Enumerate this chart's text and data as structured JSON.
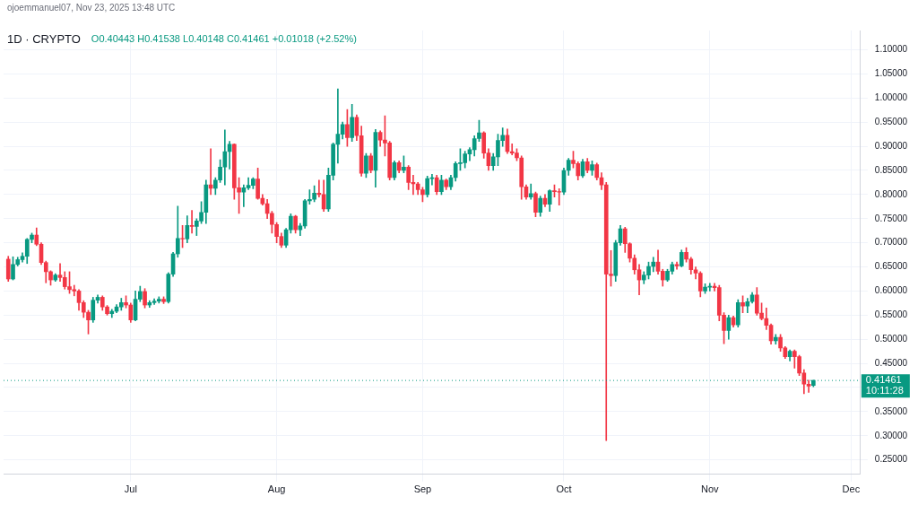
{
  "chart_data": {
    "type": "candlestick",
    "title": "1D · CRYPTO",
    "subtitle": "O0.40443 H0.41538 L0.40148 C0.41461 +0.01018 (+2.52%)",
    "annotations": [
      "ojoemmanuel07, Nov 23, 2025 13:48 UTC",
      "10:11:28"
    ],
    "x": [
      "2025-06-05",
      "2025-06-06",
      "2025-06-07",
      "2025-06-08",
      "2025-06-09",
      "2025-06-10",
      "2025-06-11",
      "2025-06-12",
      "2025-06-13",
      "2025-06-14",
      "2025-06-15",
      "2025-06-16",
      "2025-06-17",
      "2025-06-18",
      "2025-06-19",
      "2025-06-20",
      "2025-06-21",
      "2025-06-22",
      "2025-06-23",
      "2025-06-24",
      "2025-06-25",
      "2025-06-26",
      "2025-06-27",
      "2025-06-28",
      "2025-06-29",
      "2025-06-30",
      "2025-07-01",
      "2025-07-02",
      "2025-07-03",
      "2025-07-04",
      "2025-07-05",
      "2025-07-06",
      "2025-07-07",
      "2025-07-08",
      "2025-07-09",
      "2025-07-10",
      "2025-07-11",
      "2025-07-12",
      "2025-07-13",
      "2025-07-14",
      "2025-07-15",
      "2025-07-16",
      "2025-07-17",
      "2025-07-18",
      "2025-07-19",
      "2025-07-20",
      "2025-07-21",
      "2025-07-22",
      "2025-07-23",
      "2025-07-24",
      "2025-07-25",
      "2025-07-26",
      "2025-07-27",
      "2025-07-28",
      "2025-07-29",
      "2025-07-30",
      "2025-07-31",
      "2025-08-01",
      "2025-08-02",
      "2025-08-03",
      "2025-08-04",
      "2025-08-05",
      "2025-08-06",
      "2025-08-07",
      "2025-08-08",
      "2025-08-09",
      "2025-08-10",
      "2025-08-11",
      "2025-08-12",
      "2025-08-13",
      "2025-08-14",
      "2025-08-15",
      "2025-08-16",
      "2025-08-17",
      "2025-08-18",
      "2025-08-19",
      "2025-08-20",
      "2025-08-21",
      "2025-08-22",
      "2025-08-23",
      "2025-08-24",
      "2025-08-25",
      "2025-08-26",
      "2025-08-27",
      "2025-08-28",
      "2025-08-29",
      "2025-08-30",
      "2025-08-31",
      "2025-09-01",
      "2025-09-02",
      "2025-09-03",
      "2025-09-04",
      "2025-09-05",
      "2025-09-06",
      "2025-09-07",
      "2025-09-08",
      "2025-09-09",
      "2025-09-10",
      "2025-09-11",
      "2025-09-12",
      "2025-09-13",
      "2025-09-14",
      "2025-09-15",
      "2025-09-16",
      "2025-09-17",
      "2025-09-18",
      "2025-09-19",
      "2025-09-20",
      "2025-09-21",
      "2025-09-22",
      "2025-09-23",
      "2025-09-24",
      "2025-09-25",
      "2025-09-26",
      "2025-09-27",
      "2025-09-28",
      "2025-09-29",
      "2025-09-30",
      "2025-10-01",
      "2025-10-02",
      "2025-10-03",
      "2025-10-04",
      "2025-10-05",
      "2025-10-06",
      "2025-10-07",
      "2025-10-08",
      "2025-10-09",
      "2025-10-10",
      "2025-10-11",
      "2025-10-12",
      "2025-10-13",
      "2025-10-14",
      "2025-10-15",
      "2025-10-16",
      "2025-10-17",
      "2025-10-18",
      "2025-10-19",
      "2025-10-20",
      "2025-10-21",
      "2025-10-22",
      "2025-10-23",
      "2025-10-24",
      "2025-10-25",
      "2025-10-26",
      "2025-10-27",
      "2025-10-28",
      "2025-10-29",
      "2025-10-30",
      "2025-10-31",
      "2025-11-01",
      "2025-11-02",
      "2025-11-03",
      "2025-11-04",
      "2025-11-05",
      "2025-11-06",
      "2025-11-07",
      "2025-11-08",
      "2025-11-09",
      "2025-11-10",
      "2025-11-11",
      "2025-11-12",
      "2025-11-13",
      "2025-11-14",
      "2025-11-15",
      "2025-11-16",
      "2025-11-17",
      "2025-11-18",
      "2025-11-19",
      "2025-11-20",
      "2025-11-21",
      "2025-11-22",
      "2025-11-23"
    ],
    "ohlc": [
      [
        0.666,
        0.672,
        0.62,
        0.625
      ],
      [
        0.625,
        0.671,
        0.623,
        0.655
      ],
      [
        0.655,
        0.67,
        0.652,
        0.665
      ],
      [
        0.665,
        0.679,
        0.66,
        0.672
      ],
      [
        0.672,
        0.709,
        0.657,
        0.707
      ],
      [
        0.707,
        0.72,
        0.7,
        0.716
      ],
      [
        0.716,
        0.731,
        0.694,
        0.697
      ],
      [
        0.697,
        0.7,
        0.655,
        0.659
      ],
      [
        0.659,
        0.662,
        0.617,
        0.64
      ],
      [
        0.64,
        0.642,
        0.612,
        0.623
      ],
      [
        0.623,
        0.636,
        0.62,
        0.633
      ],
      [
        0.633,
        0.657,
        0.62,
        0.628
      ],
      [
        0.628,
        0.64,
        0.604,
        0.609
      ],
      [
        0.609,
        0.64,
        0.595,
        0.603
      ],
      [
        0.603,
        0.612,
        0.59,
        0.6
      ],
      [
        0.6,
        0.603,
        0.56,
        0.576
      ],
      [
        0.576,
        0.58,
        0.545,
        0.556
      ],
      [
        0.556,
        0.56,
        0.511,
        0.54
      ],
      [
        0.54,
        0.587,
        0.535,
        0.581
      ],
      [
        0.581,
        0.592,
        0.575,
        0.587
      ],
      [
        0.587,
        0.59,
        0.56,
        0.567
      ],
      [
        0.567,
        0.57,
        0.55,
        0.553
      ],
      [
        0.553,
        0.562,
        0.545,
        0.558
      ],
      [
        0.558,
        0.572,
        0.555,
        0.567
      ],
      [
        0.567,
        0.585,
        0.56,
        0.576
      ],
      [
        0.576,
        0.59,
        0.565,
        0.571
      ],
      [
        0.571,
        0.575,
        0.535,
        0.54
      ],
      [
        0.54,
        0.6,
        0.538,
        0.583
      ],
      [
        0.583,
        0.61,
        0.578,
        0.599
      ],
      [
        0.599,
        0.605,
        0.565,
        0.571
      ],
      [
        0.571,
        0.58,
        0.566,
        0.576
      ],
      [
        0.576,
        0.584,
        0.572,
        0.579
      ],
      [
        0.579,
        0.588,
        0.575,
        0.583
      ],
      [
        0.583,
        0.588,
        0.574,
        0.578
      ],
      [
        0.578,
        0.638,
        0.575,
        0.635
      ],
      [
        0.635,
        0.68,
        0.63,
        0.677
      ],
      [
        0.677,
        0.776,
        0.67,
        0.709
      ],
      [
        0.709,
        0.736,
        0.69,
        0.708
      ],
      [
        0.708,
        0.756,
        0.7,
        0.736
      ],
      [
        0.736,
        0.767,
        0.72,
        0.734
      ],
      [
        0.734,
        0.75,
        0.715,
        0.745
      ],
      [
        0.745,
        0.785,
        0.74,
        0.763
      ],
      [
        0.763,
        0.83,
        0.74,
        0.82
      ],
      [
        0.82,
        0.895,
        0.8,
        0.813
      ],
      [
        0.813,
        0.835,
        0.8,
        0.83
      ],
      [
        0.83,
        0.872,
        0.825,
        0.857
      ],
      [
        0.857,
        0.934,
        0.82,
        0.889
      ],
      [
        0.889,
        0.91,
        0.853,
        0.904
      ],
      [
        0.904,
        0.905,
        0.79,
        0.814
      ],
      [
        0.814,
        0.835,
        0.761,
        0.805
      ],
      [
        0.805,
        0.82,
        0.775,
        0.814
      ],
      [
        0.814,
        0.835,
        0.81,
        0.819
      ],
      [
        0.819,
        0.835,
        0.812,
        0.832
      ],
      [
        0.832,
        0.855,
        0.79,
        0.792
      ],
      [
        0.792,
        0.8,
        0.778,
        0.781
      ],
      [
        0.781,
        0.79,
        0.75,
        0.761
      ],
      [
        0.761,
        0.765,
        0.72,
        0.738
      ],
      [
        0.738,
        0.742,
        0.7,
        0.713
      ],
      [
        0.713,
        0.72,
        0.69,
        0.695
      ],
      [
        0.695,
        0.73,
        0.69,
        0.727
      ],
      [
        0.727,
        0.76,
        0.72,
        0.755
      ],
      [
        0.755,
        0.757,
        0.72,
        0.727
      ],
      [
        0.727,
        0.74,
        0.715,
        0.735
      ],
      [
        0.735,
        0.79,
        0.73,
        0.787
      ],
      [
        0.787,
        0.81,
        0.78,
        0.79
      ],
      [
        0.79,
        0.818,
        0.785,
        0.803
      ],
      [
        0.803,
        0.83,
        0.795,
        0.8
      ],
      [
        0.8,
        0.83,
        0.765,
        0.77
      ],
      [
        0.77,
        0.855,
        0.765,
        0.84
      ],
      [
        0.84,
        0.907,
        0.83,
        0.904
      ],
      [
        0.904,
        1.019,
        0.865,
        0.925
      ],
      [
        0.925,
        0.95,
        0.915,
        0.945
      ],
      [
        0.945,
        0.976,
        0.9,
        0.918
      ],
      [
        0.918,
        0.987,
        0.91,
        0.96
      ],
      [
        0.96,
        0.965,
        0.912,
        0.922
      ],
      [
        0.922,
        0.942,
        0.838,
        0.844
      ],
      [
        0.844,
        0.885,
        0.835,
        0.88
      ],
      [
        0.88,
        0.885,
        0.845,
        0.85
      ],
      [
        0.85,
        0.935,
        0.815,
        0.929
      ],
      [
        0.929,
        0.932,
        0.9,
        0.913
      ],
      [
        0.913,
        0.963,
        0.88,
        0.907
      ],
      [
        0.907,
        0.91,
        0.83,
        0.835
      ],
      [
        0.835,
        0.87,
        0.83,
        0.866
      ],
      [
        0.866,
        0.87,
        0.845,
        0.85
      ],
      [
        0.85,
        0.88,
        0.845,
        0.857
      ],
      [
        0.857,
        0.86,
        0.81,
        0.825
      ],
      [
        0.825,
        0.84,
        0.8,
        0.822
      ],
      [
        0.822,
        0.825,
        0.8,
        0.81
      ],
      [
        0.81,
        0.815,
        0.785,
        0.8
      ],
      [
        0.8,
        0.838,
        0.795,
        0.833
      ],
      [
        0.833,
        0.842,
        0.82,
        0.835
      ],
      [
        0.835,
        0.84,
        0.8,
        0.806
      ],
      [
        0.806,
        0.84,
        0.8,
        0.83
      ],
      [
        0.83,
        0.832,
        0.81,
        0.816
      ],
      [
        0.816,
        0.84,
        0.81,
        0.835
      ],
      [
        0.835,
        0.868,
        0.828,
        0.864
      ],
      [
        0.864,
        0.895,
        0.85,
        0.866
      ],
      [
        0.866,
        0.89,
        0.855,
        0.884
      ],
      [
        0.884,
        0.897,
        0.87,
        0.893
      ],
      [
        0.893,
        0.922,
        0.88,
        0.916
      ],
      [
        0.916,
        0.954,
        0.91,
        0.928
      ],
      [
        0.928,
        0.93,
        0.875,
        0.886
      ],
      [
        0.886,
        0.895,
        0.85,
        0.86
      ],
      [
        0.86,
        0.885,
        0.85,
        0.878
      ],
      [
        0.878,
        0.925,
        0.86,
        0.912
      ],
      [
        0.912,
        0.938,
        0.9,
        0.923
      ],
      [
        0.923,
        0.936,
        0.885,
        0.889
      ],
      [
        0.889,
        0.905,
        0.882,
        0.886
      ],
      [
        0.886,
        0.895,
        0.87,
        0.876
      ],
      [
        0.876,
        0.88,
        0.79,
        0.816
      ],
      [
        0.816,
        0.82,
        0.79,
        0.795
      ],
      [
        0.795,
        0.822,
        0.79,
        0.802
      ],
      [
        0.802,
        0.805,
        0.754,
        0.763
      ],
      [
        0.763,
        0.797,
        0.755,
        0.792
      ],
      [
        0.792,
        0.8,
        0.775,
        0.78
      ],
      [
        0.78,
        0.81,
        0.765,
        0.808
      ],
      [
        0.808,
        0.82,
        0.795,
        0.806
      ],
      [
        0.806,
        0.812,
        0.778,
        0.805
      ],
      [
        0.805,
        0.855,
        0.8,
        0.85
      ],
      [
        0.85,
        0.875,
        0.84,
        0.871
      ],
      [
        0.871,
        0.89,
        0.855,
        0.864
      ],
      [
        0.864,
        0.868,
        0.83,
        0.839
      ],
      [
        0.839,
        0.873,
        0.835,
        0.868
      ],
      [
        0.868,
        0.875,
        0.845,
        0.85
      ],
      [
        0.85,
        0.87,
        0.84,
        0.862
      ],
      [
        0.862,
        0.865,
        0.83,
        0.835
      ],
      [
        0.835,
        0.845,
        0.81,
        0.82
      ],
      [
        0.82,
        0.825,
        0.29,
        0.635
      ],
      [
        0.635,
        0.684,
        0.61,
        0.632
      ],
      [
        0.632,
        0.705,
        0.62,
        0.7
      ],
      [
        0.7,
        0.736,
        0.695,
        0.729
      ],
      [
        0.729,
        0.732,
        0.68,
        0.698
      ],
      [
        0.698,
        0.7,
        0.66,
        0.668
      ],
      [
        0.668,
        0.675,
        0.635,
        0.644
      ],
      [
        0.644,
        0.655,
        0.592,
        0.623
      ],
      [
        0.623,
        0.64,
        0.615,
        0.633
      ],
      [
        0.633,
        0.66,
        0.625,
        0.651
      ],
      [
        0.651,
        0.67,
        0.64,
        0.66
      ],
      [
        0.66,
        0.685,
        0.635,
        0.641
      ],
      [
        0.641,
        0.645,
        0.61,
        0.623
      ],
      [
        0.623,
        0.645,
        0.62,
        0.641
      ],
      [
        0.641,
        0.66,
        0.635,
        0.655
      ],
      [
        0.655,
        0.66,
        0.645,
        0.652
      ],
      [
        0.652,
        0.685,
        0.65,
        0.68
      ],
      [
        0.68,
        0.69,
        0.66,
        0.666
      ],
      [
        0.666,
        0.67,
        0.635,
        0.644
      ],
      [
        0.644,
        0.65,
        0.625,
        0.637
      ],
      [
        0.637,
        0.64,
        0.588,
        0.6
      ],
      [
        0.6,
        0.615,
        0.595,
        0.608
      ],
      [
        0.608,
        0.616,
        0.6,
        0.61
      ],
      [
        0.61,
        0.616,
        0.6,
        0.607
      ],
      [
        0.607,
        0.612,
        0.538,
        0.55
      ],
      [
        0.55,
        0.555,
        0.491,
        0.518
      ],
      [
        0.518,
        0.55,
        0.5,
        0.545
      ],
      [
        0.545,
        0.548,
        0.525,
        0.53
      ],
      [
        0.53,
        0.582,
        0.525,
        0.576
      ],
      [
        0.576,
        0.59,
        0.555,
        0.569
      ],
      [
        0.569,
        0.585,
        0.555,
        0.578
      ],
      [
        0.578,
        0.597,
        0.575,
        0.592
      ],
      [
        0.592,
        0.607,
        0.55,
        0.554
      ],
      [
        0.554,
        0.575,
        0.54,
        0.543
      ],
      [
        0.543,
        0.565,
        0.52,
        0.529
      ],
      [
        0.529,
        0.532,
        0.49,
        0.497
      ],
      [
        0.497,
        0.51,
        0.49,
        0.504
      ],
      [
        0.504,
        0.51,
        0.475,
        0.482
      ],
      [
        0.482,
        0.485,
        0.46,
        0.464
      ],
      [
        0.464,
        0.478,
        0.455,
        0.475
      ],
      [
        0.475,
        0.478,
        0.44,
        0.464
      ],
      [
        0.464,
        0.467,
        0.425,
        0.43
      ],
      [
        0.43,
        0.437,
        0.387,
        0.407
      ],
      [
        0.407,
        0.415,
        0.39,
        0.403
      ],
      [
        0.40443,
        0.41538,
        0.40148,
        0.41461
      ]
    ],
    "colors": [
      "#f23645",
      "#089981",
      "#089981",
      "#089981",
      "#089981",
      "#089981",
      "#f23645",
      "#f23645",
      "#f23645",
      "#f23645",
      "#089981",
      "#f23645",
      "#f23645",
      "#f23645",
      "#f23645",
      "#f23645",
      "#f23645",
      "#f23645",
      "#089981",
      "#089981",
      "#f23645",
      "#f23645",
      "#089981",
      "#089981",
      "#089981",
      "#f23645",
      "#f23645",
      "#089981",
      "#089981",
      "#f23645",
      "#089981",
      "#089981",
      "#089981",
      "#f23645",
      "#089981",
      "#089981",
      "#089981",
      "#f23645",
      "#089981",
      "#f23645",
      "#089981",
      "#089981",
      "#089981",
      "#f23645",
      "#089981",
      "#089981",
      "#089981",
      "#089981",
      "#f23645",
      "#f23645",
      "#089981",
      "#089981",
      "#089981",
      "#f23645",
      "#f23645",
      "#f23645",
      "#f23645",
      "#f23645",
      "#f23645",
      "#089981",
      "#089981",
      "#f23645",
      "#089981",
      "#089981",
      "#089981",
      "#089981",
      "#f23645",
      "#f23645",
      "#089981",
      "#089981",
      "#089981",
      "#089981",
      "#f23645",
      "#089981",
      "#f23645",
      "#f23645",
      "#089981",
      "#f23645",
      "#089981",
      "#f23645",
      "#f23645",
      "#f23645",
      "#089981",
      "#f23645",
      "#089981",
      "#f23645",
      "#f23645",
      "#f23645",
      "#f23645",
      "#089981",
      "#089981",
      "#f23645",
      "#089981",
      "#f23645",
      "#089981",
      "#089981",
      "#089981",
      "#089981",
      "#089981",
      "#089981",
      "#089981",
      "#f23645",
      "#f23645",
      "#089981",
      "#089981",
      "#089981",
      "#f23645",
      "#f23645",
      "#f23645",
      "#f23645",
      "#f23645",
      "#089981",
      "#f23645",
      "#089981",
      "#f23645",
      "#089981",
      "#f23645",
      "#f23645",
      "#089981",
      "#089981",
      "#f23645",
      "#f23645",
      "#089981",
      "#f23645",
      "#089981",
      "#f23645",
      "#f23645",
      "#f23645",
      "#f23645",
      "#089981",
      "#089981",
      "#f23645",
      "#f23645",
      "#f23645",
      "#f23645",
      "#089981",
      "#089981",
      "#089981",
      "#f23645",
      "#f23645",
      "#089981",
      "#089981",
      "#f23645",
      "#089981",
      "#f23645",
      "#f23645",
      "#f23645",
      "#f23645",
      "#089981",
      "#089981",
      "#f23645",
      "#f23645",
      "#f23645",
      "#089981",
      "#f23645",
      "#089981",
      "#f23645",
      "#089981",
      "#089981",
      "#f23645",
      "#f23645",
      "#f23645",
      "#f23645",
      "#089981",
      "#f23645",
      "#f23645",
      "#089981",
      "#f23645",
      "#f23645",
      "#f23645",
      "#f23645",
      "#089981"
    ],
    "xlim": [
      "2025-06-04",
      "2025-12-03"
    ],
    "xticks": [
      {
        "value": "2025-07-01",
        "label": "Jul"
      },
      {
        "value": "2025-08-01",
        "label": "Aug"
      },
      {
        "value": "2025-09-01",
        "label": "Sep"
      },
      {
        "value": "2025-10-01",
        "label": "Oct"
      },
      {
        "value": "2025-11-01",
        "label": "Nov"
      },
      {
        "value": "2025-12-01",
        "label": "Dec"
      }
    ],
    "ylim": [
      0.22,
      1.14
    ],
    "yticks": [
      {
        "value": 0.25,
        "label": "0.25000"
      },
      {
        "value": 0.3,
        "label": "0.30000"
      },
      {
        "value": 0.35,
        "label": "0.35000"
      },
      {
        "value": 0.4,
        "label": null
      },
      {
        "value": 0.45,
        "label": "0.45000"
      },
      {
        "value": 0.5,
        "label": "0.50000"
      },
      {
        "value": 0.55,
        "label": "0.55000"
      },
      {
        "value": 0.6,
        "label": "0.60000"
      },
      {
        "value": 0.65,
        "label": "0.65000"
      },
      {
        "value": 0.7,
        "label": "0.70000"
      },
      {
        "value": 0.75,
        "label": "0.75000"
      },
      {
        "value": 0.8,
        "label": "0.80000"
      },
      {
        "value": 0.85,
        "label": "0.85000"
      },
      {
        "value": 0.9,
        "label": "0.90000"
      },
      {
        "value": 0.95,
        "label": "0.95000"
      },
      {
        "value": 1.0,
        "label": "1.00000"
      },
      {
        "value": 1.05,
        "label": "1.05000"
      },
      {
        "value": 1.1,
        "label": "1.10000"
      }
    ],
    "ref_lines": [
      {
        "axis": "y",
        "value": 0.41461,
        "label": "0.41461",
        "color": "#089981",
        "line_style": "dotted"
      }
    ],
    "grid": true,
    "legend": false
  }
}
